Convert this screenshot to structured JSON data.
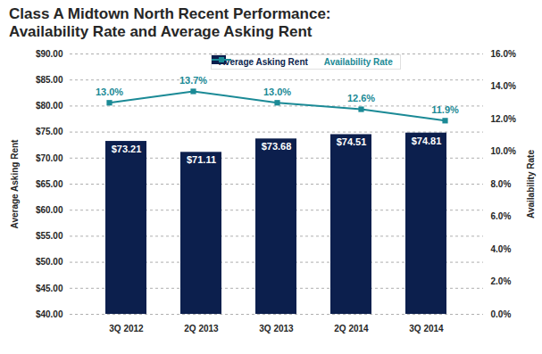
{
  "chart_data": {
    "type": "bar",
    "title": "Class A Midtown North Recent Performance:\nAvailability Rate and Average Asking Rent",
    "categories": [
      "3Q 2012",
      "2Q 2013",
      "3Q 2013",
      "2Q 2014",
      "3Q 2014"
    ],
    "series": [
      {
        "name": "Average Asking Rent",
        "type": "bar",
        "color": "#0c1f4d",
        "values": [
          73.21,
          71.11,
          73.68,
          74.51,
          74.81
        ],
        "value_labels": [
          "$73.21",
          "$71.11",
          "$73.68",
          "$74.51",
          "$74.81"
        ]
      },
      {
        "name": "Availability Rate",
        "type": "line",
        "axis": "y2",
        "color": "#1b8a96",
        "marker": "square",
        "values": [
          13.0,
          13.7,
          13.0,
          12.6,
          11.9
        ],
        "value_labels": [
          "13.0%",
          "13.7%",
          "13.0%",
          "12.6%",
          "11.9%"
        ]
      }
    ],
    "ylabel": "Average Asking Rent",
    "y2label": "Availability Rate",
    "ylim": [
      40,
      90
    ],
    "yticks": [
      {
        "value": 40,
        "label": "$40.00"
      },
      {
        "value": 45,
        "label": "$45.00"
      },
      {
        "value": 50,
        "label": "$50.00"
      },
      {
        "value": 55,
        "label": "$55.00"
      },
      {
        "value": 60,
        "label": "$60.00"
      },
      {
        "value": 65,
        "label": "$65.00"
      },
      {
        "value": 70,
        "label": "$70.00"
      },
      {
        "value": 75,
        "label": "$75.00"
      },
      {
        "value": 80,
        "label": "$80.00"
      },
      {
        "value": 85,
        "label": "$85.00"
      },
      {
        "value": 90,
        "label": "$90.00"
      }
    ],
    "y2lim": [
      0,
      16
    ],
    "y2ticks": [
      {
        "value": 0,
        "label": "0.0%"
      },
      {
        "value": 2,
        "label": "2.0%"
      },
      {
        "value": 4,
        "label": "4.0%"
      },
      {
        "value": 6,
        "label": "6.0%"
      },
      {
        "value": 8,
        "label": "8.0%"
      },
      {
        "value": 10,
        "label": "10.0%"
      },
      {
        "value": 12,
        "label": "12.0%"
      },
      {
        "value": 14,
        "label": "14.0%"
      },
      {
        "value": 16,
        "label": "16.0%"
      }
    ],
    "grid": true,
    "legend": "top",
    "data_labels": true
  }
}
